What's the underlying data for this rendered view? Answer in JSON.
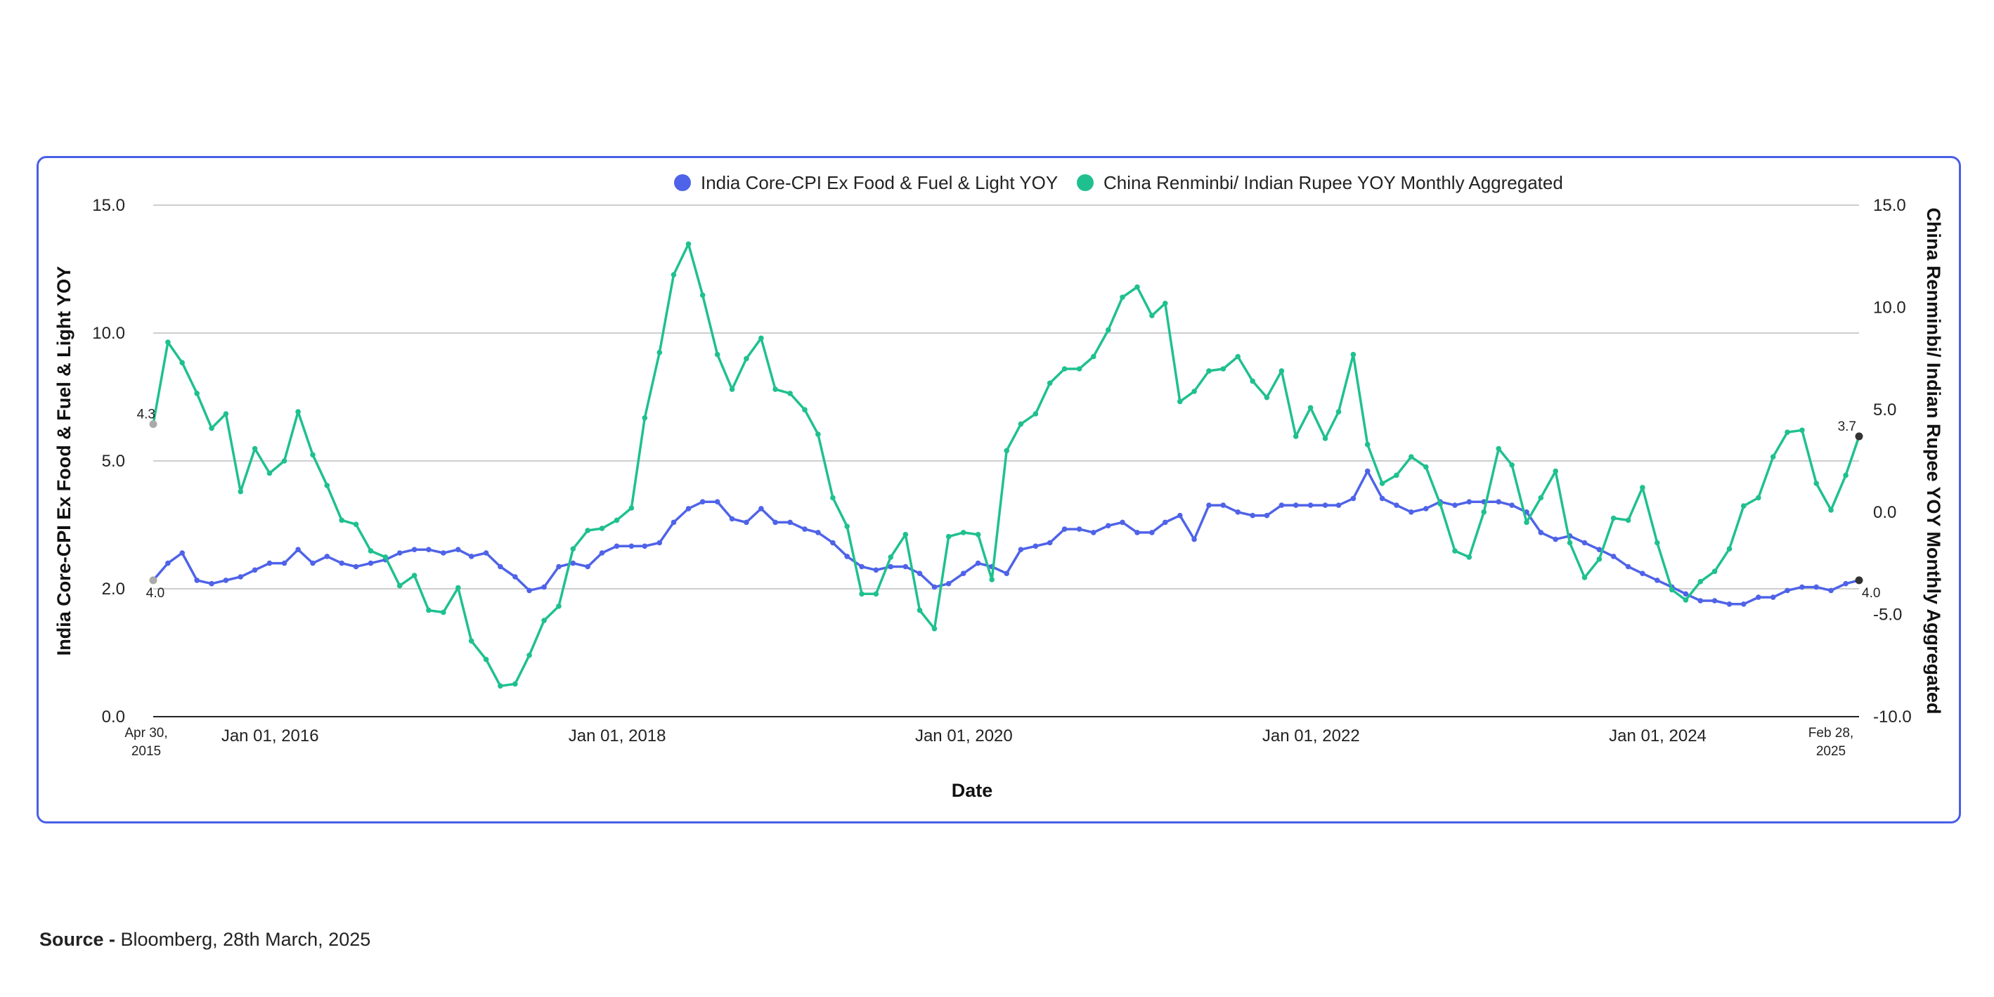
{
  "chart_data": {
    "type": "line",
    "xlabel": "Date",
    "y_left_label": "India Core-CPI Ex Food & Fuel & Light YOY",
    "y_right_label": "China Renminbi/ Indian Rupee YOY Monthly Aggregated",
    "y_left_range": [
      0,
      15
    ],
    "y_right_range": [
      -10,
      15
    ],
    "y_left_ticks": [
      "0.0",
      "2.0",
      "5.0",
      "10.0",
      "15.0"
    ],
    "y_right_ticks": [
      "-10.0",
      "-5.0",
      "0.0",
      "5.0",
      "10.0",
      "15.0"
    ],
    "x_start": "2015-04-30",
    "x_end": "2025-02-28",
    "x_ticks": [
      {
        "date": "2016-01-01",
        "label": "Jan 01, 2016"
      },
      {
        "date": "2018-01-01",
        "label": "Jan 01, 2018"
      },
      {
        "date": "2020-01-01",
        "label": "Jan 01, 2020"
      },
      {
        "date": "2022-01-01",
        "label": "Jan 01, 2022"
      },
      {
        "date": "2024-01-01",
        "label": "Jan 01, 2024"
      }
    ],
    "x_start_label": [
      "Apr 30,",
      "2015"
    ],
    "x_end_label": [
      "Feb 28,",
      "2025"
    ],
    "grid": true,
    "legend_position": "top-center",
    "series": [
      {
        "name": "India Core-CPI Ex Food & Fuel & Light YOY",
        "axis": "left",
        "color": "#4f63e8",
        "start_label": "4.0",
        "end_label": "4.0",
        "values": [
          4.0,
          4.5,
          4.8,
          4.0,
          3.9,
          4.0,
          4.1,
          4.3,
          4.5,
          4.5,
          4.9,
          4.5,
          4.7,
          4.5,
          4.4,
          4.5,
          4.6,
          4.8,
          4.9,
          4.9,
          4.8,
          4.9,
          4.7,
          4.8,
          4.4,
          4.1,
          3.7,
          3.8,
          4.4,
          4.5,
          4.4,
          4.8,
          5.0,
          5.0,
          5.0,
          5.1,
          5.7,
          6.1,
          6.3,
          6.3,
          5.8,
          5.7,
          6.1,
          5.7,
          5.7,
          5.5,
          5.4,
          5.1,
          4.7,
          4.4,
          4.3,
          4.4,
          4.4,
          4.2,
          3.8,
          3.9,
          4.2,
          4.5,
          4.4,
          4.2,
          4.9,
          5.0,
          5.1,
          5.5,
          5.5,
          5.4,
          5.6,
          5.7,
          5.4,
          5.4,
          5.7,
          5.9,
          5.2,
          6.2,
          6.2,
          6.0,
          5.9,
          5.9,
          6.2,
          6.2,
          6.2,
          6.2,
          6.2,
          6.4,
          7.2,
          6.4,
          6.2,
          6.0,
          6.1,
          6.3,
          6.2,
          6.3,
          6.3,
          6.3,
          6.2,
          6.0,
          5.4,
          5.2,
          5.3,
          5.1,
          4.9,
          4.7,
          4.4,
          4.2,
          4.0,
          3.8,
          3.6,
          3.4,
          3.4,
          3.3,
          3.3,
          3.5,
          3.5,
          3.7,
          3.8,
          3.8,
          3.7,
          3.9,
          4.0
        ]
      },
      {
        "name": "China Renminbi/ Indian Rupee YOY Monthly Aggregated",
        "axis": "right",
        "color": "#1fc08f",
        "start_label": "4.3",
        "end_label": "3.7",
        "values": [
          4.3,
          8.3,
          7.3,
          5.8,
          4.1,
          4.8,
          1.0,
          3.1,
          1.9,
          2.5,
          4.9,
          2.8,
          1.3,
          -0.4,
          -0.6,
          -1.9,
          -2.2,
          -3.6,
          -3.1,
          -4.8,
          -4.9,
          -3.7,
          -6.3,
          -7.2,
          -8.5,
          -8.4,
          -7.0,
          -5.3,
          -4.6,
          -1.8,
          -0.9,
          -0.8,
          -0.4,
          0.2,
          4.6,
          7.8,
          11.6,
          13.1,
          10.6,
          7.7,
          6.0,
          7.5,
          8.5,
          6.0,
          5.8,
          5.0,
          3.8,
          0.7,
          -0.7,
          -4.0,
          -4.0,
          -2.2,
          -1.1,
          -4.8,
          -5.7,
          -1.2,
          -1.0,
          -1.1,
          -3.3,
          3.0,
          4.3,
          4.8,
          6.3,
          7.0,
          7.0,
          7.6,
          8.9,
          10.5,
          11.0,
          9.6,
          10.2,
          5.4,
          5.9,
          6.9,
          7.0,
          7.6,
          6.4,
          5.6,
          6.9,
          3.7,
          5.1,
          3.6,
          4.9,
          7.7,
          3.3,
          1.4,
          1.8,
          2.7,
          2.2,
          0.4,
          -1.9,
          -2.2,
          0.0,
          3.1,
          2.3,
          -0.5,
          0.7,
          2.0,
          -1.5,
          -3.2,
          -2.3,
          -0.3,
          -0.4,
          1.2,
          -1.5,
          -3.8,
          -4.3,
          -3.4,
          -2.9,
          -1.8,
          0.3,
          0.7,
          2.7,
          3.9,
          4.0,
          1.4,
          0.1,
          1.8,
          3.7
        ]
      }
    ]
  },
  "source": {
    "label": "Source - ",
    "text": "Bloomberg, 28th March, 2025"
  }
}
